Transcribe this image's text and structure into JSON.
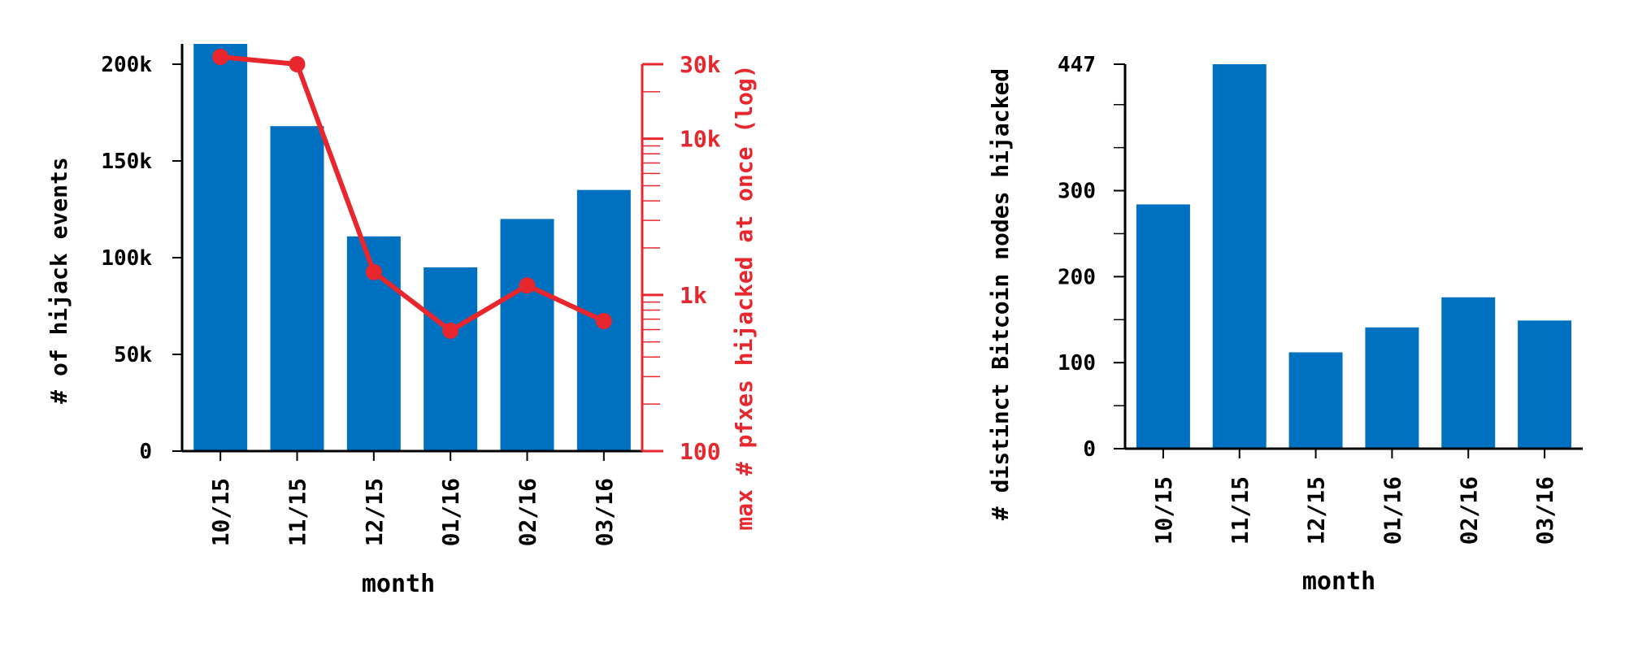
{
  "colors": {
    "bar": "#0070c0",
    "line": "#e8262d",
    "axis": "#000000"
  },
  "chart_data": [
    {
      "type": "bar",
      "title": "",
      "xlabel": "month",
      "ylabel": "# of hijack events",
      "y2label": "max # pfxes hijacked at once (log)",
      "categories": [
        "10/15",
        "11/15",
        "12/15",
        "01/16",
        "02/16",
        "03/16"
      ],
      "ylim": [
        0,
        200000
      ],
      "yticks": [
        0,
        50000,
        100000,
        150000,
        200000
      ],
      "yticklabels": [
        "0",
        "50k",
        "100k",
        "150k",
        "200k"
      ],
      "series": [
        {
          "type": "bar",
          "axis": "left",
          "values": [
            211000,
            168000,
            111000,
            95000,
            120000,
            135000
          ]
        },
        {
          "type": "line",
          "axis": "right",
          "scale": "log",
          "values": [
            35000,
            30000,
            1400,
            590,
            1150,
            680
          ]
        }
      ],
      "y2lim": [
        100,
        30000
      ],
      "y2ticks": [
        100,
        1000,
        10000,
        30000
      ],
      "y2ticklabels": [
        "100",
        "1k",
        "10k",
        "30k"
      ],
      "grid": false
    },
    {
      "type": "bar",
      "title": "",
      "xlabel": "month",
      "ylabel": "# distinct Bitcoin nodes hijacked",
      "categories": [
        "10/15",
        "11/15",
        "12/15",
        "01/16",
        "02/16",
        "03/16"
      ],
      "values": [
        284,
        447,
        112,
        141,
        176,
        149
      ],
      "ylim": [
        0,
        447
      ],
      "yticks": [
        0,
        100,
        200,
        300,
        447
      ],
      "yticklabels": [
        "0",
        "100",
        "200",
        "300",
        "447"
      ],
      "grid": false
    }
  ]
}
